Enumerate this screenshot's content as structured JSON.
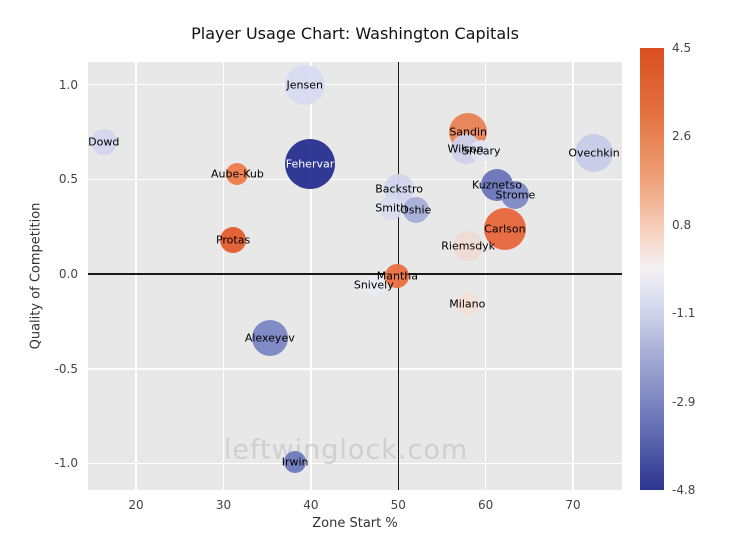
{
  "watermark": "leftwinglock.com",
  "chart_data": {
    "type": "scatter",
    "title": "Player Usage Chart: Washington Capitals",
    "xlabel": "Zone Start %",
    "ylabel": "Quality of Competition",
    "xlim": [
      14.5,
      75.6
    ],
    "ylim": [
      -1.14,
      1.12
    ],
    "grid": true,
    "plot_background": "#e8e8e8",
    "xticks": [
      {
        "v": 20,
        "label": "20"
      },
      {
        "v": 30,
        "label": "30"
      },
      {
        "v": 40,
        "label": "40"
      },
      {
        "v": 50,
        "label": "50"
      },
      {
        "v": 60,
        "label": "60"
      },
      {
        "v": 70,
        "label": "70"
      }
    ],
    "yticks": [
      {
        "v": 1.0,
        "label": "1.0"
      },
      {
        "v": 0.5,
        "label": "0.5"
      },
      {
        "v": 0.0,
        "label": "0.0"
      },
      {
        "v": -0.5,
        "label": "-0.5"
      },
      {
        "v": -1.0,
        "label": "-1.0"
      }
    ],
    "crosshair": {
      "x": 50,
      "y": 0
    },
    "points": [
      {
        "name": "Jensen",
        "x": 39.3,
        "y": 1.0,
        "r": 20,
        "color": "#d8daf0"
      },
      {
        "name": "Dowd",
        "x": 16.3,
        "y": 0.7,
        "r": 13,
        "color": "#d3d6ee"
      },
      {
        "name": "Sandin",
        "x": 58.0,
        "y": 0.75,
        "r": 19,
        "color": "#e98154"
      },
      {
        "name": "Wilson",
        "x": 57.7,
        "y": 0.66,
        "r": 15,
        "color": "#cdd1ea"
      },
      {
        "name": "Sheary",
        "x": 59.5,
        "y": 0.65,
        "r": 11,
        "color": "#e3e5f3"
      },
      {
        "name": "Ovechkin",
        "x": 72.4,
        "y": 0.64,
        "r": 19,
        "color": "#c7cce8"
      },
      {
        "name": "Aube-Kub",
        "x": 31.6,
        "y": 0.53,
        "r": 11,
        "color": "#ec7c4a"
      },
      {
        "name": "Fehervar",
        "x": 39.9,
        "y": 0.58,
        "r": 25,
        "color": "#262f8e",
        "label_color": "#ffffff"
      },
      {
        "name": "Backstro",
        "x": 50.1,
        "y": 0.45,
        "r": 15,
        "color": "#d2d5ec"
      },
      {
        "name": "Smith",
        "x": 49.2,
        "y": 0.35,
        "r": 12,
        "color": "#d9dbef"
      },
      {
        "name": "Oshie",
        "x": 52.0,
        "y": 0.34,
        "r": 13,
        "color": "#a6aed7"
      },
      {
        "name": "Kuznetso",
        "x": 61.3,
        "y": 0.47,
        "r": 16,
        "color": "#6974b8"
      },
      {
        "name": "Strome",
        "x": 63.4,
        "y": 0.42,
        "r": 14,
        "color": "#7e89c4"
      },
      {
        "name": "Carlson",
        "x": 62.2,
        "y": 0.24,
        "r": 21,
        "color": "#e7663b"
      },
      {
        "name": "Riemsdyk",
        "x": 58.0,
        "y": 0.15,
        "r": 15,
        "color": "#efdbd3"
      },
      {
        "name": "Protas",
        "x": 31.1,
        "y": 0.18,
        "r": 13,
        "color": "#e45c2d"
      },
      {
        "name": "Mantha",
        "x": 49.9,
        "y": -0.01,
        "r": 12,
        "color": "#ea7041"
      },
      {
        "name": "Snively",
        "x": 47.2,
        "y": -0.06,
        "r": 10,
        "color": "#eaecf6"
      },
      {
        "name": "Milano",
        "x": 57.9,
        "y": -0.16,
        "r": 12,
        "color": "#f2e0d8"
      },
      {
        "name": "Alexeyev",
        "x": 35.3,
        "y": -0.34,
        "r": 18,
        "color": "#7b86c3"
      },
      {
        "name": "Irwin",
        "x": 38.2,
        "y": -0.99,
        "r": 11,
        "color": "#6d79bc"
      }
    ],
    "colorbar": {
      "ticks": [
        "4.5",
        "2.6",
        "0.8",
        "-1.1",
        "-2.9",
        "-4.8"
      ],
      "gradient": [
        "#d94e20 0%",
        "#e3703d 14%",
        "#efa179 30%",
        "#f7d4c2 42%",
        "#f3f0f3 50%",
        "#d7dbef 58%",
        "#a3abd5 70%",
        "#6b77ba 84%",
        "#2c3590 100%"
      ]
    }
  }
}
